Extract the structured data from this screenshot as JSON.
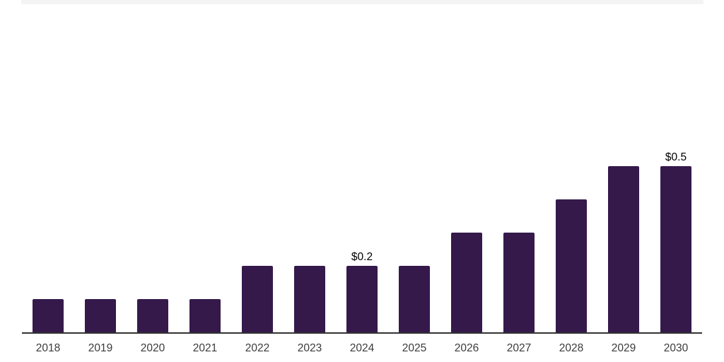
{
  "chart_data": {
    "type": "bar",
    "categories": [
      "2018",
      "2019",
      "2020",
      "2021",
      "2022",
      "2023",
      "2024",
      "2025",
      "2026",
      "2027",
      "2028",
      "2029",
      "2030"
    ],
    "values": [
      0.1,
      0.1,
      0.1,
      0.1,
      0.2,
      0.2,
      0.2,
      0.2,
      0.3,
      0.3,
      0.4,
      0.5,
      0.5
    ],
    "data_labels": [
      {
        "category": "2024",
        "text": "$0.2"
      },
      {
        "category": "2030",
        "text": "$0.5"
      }
    ],
    "x_tick_labels": [
      "2018",
      "2019",
      "2020",
      "2021",
      "2022",
      "2023",
      "2024",
      "2025",
      "2026",
      "2027",
      "2028",
      "2029",
      "2030"
    ],
    "ylim": [
      0,
      0.6
    ],
    "grid": false,
    "legend": false,
    "bar_color": "#35194b",
    "axis_line_color": "#333333",
    "tick_label_color": "#3b3b3b",
    "value_label_color": "#000000",
    "top_strip_color": "#f4f4f5",
    "background_color": "#ffffff"
  }
}
